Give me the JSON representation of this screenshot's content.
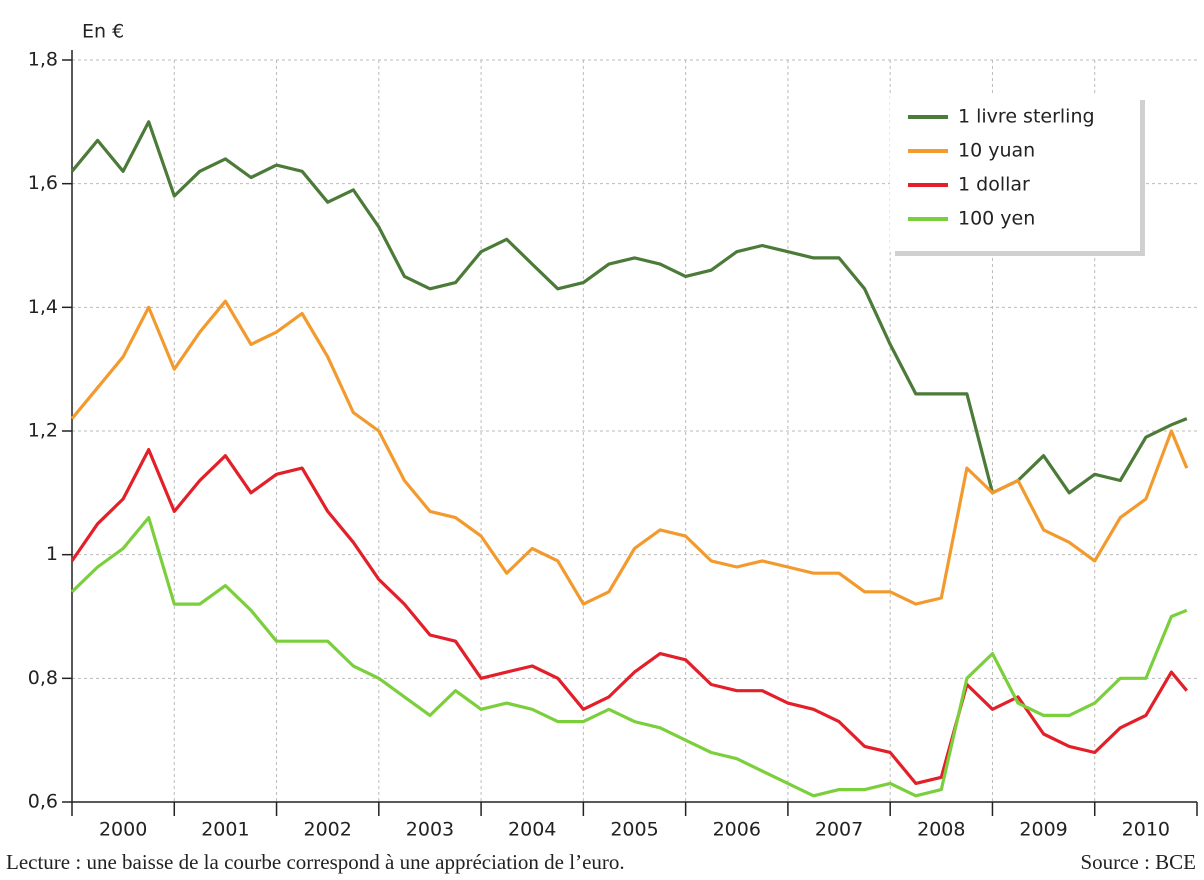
{
  "chart_data": {
    "type": "line",
    "y_label": "En €",
    "note": "Lecture : une baisse de la courbe correspond à une appréciation de l’euro.",
    "source": "Source : BCE",
    "categories": [
      "2000",
      "2001",
      "2002",
      "2003",
      "2004",
      "2005",
      "2006",
      "2007",
      "2008",
      "2009",
      "2010"
    ],
    "xlim": [
      2000,
      2011
    ],
    "ylim": [
      0.6,
      1.8
    ],
    "yticks": [
      {
        "value": 0.6,
        "label": "0,6"
      },
      {
        "value": 0.8,
        "label": "0,8"
      },
      1,
      {
        "value": 1.2,
        "label": "1,2"
      },
      {
        "value": 1.4,
        "label": "1,4"
      },
      {
        "value": 1.6,
        "label": "1,6"
      },
      {
        "value": 1.8,
        "label": "1,8"
      }
    ],
    "grid": true,
    "legend": "upper right",
    "x": [
      2000,
      2000.25,
      2000.5,
      2000.75,
      2001,
      2001.25,
      2001.5,
      2001.75,
      2002,
      2002.25,
      2002.5,
      2002.75,
      2003,
      2003.25,
      2003.5,
      2003.75,
      2004,
      2004.25,
      2004.5,
      2004.75,
      2005,
      2005.25,
      2005.5,
      2005.75,
      2006,
      2006.25,
      2006.5,
      2006.75,
      2007,
      2007.25,
      2007.5,
      2007.75,
      2008,
      2008.25,
      2008.5,
      2008.75,
      2009,
      2009.25,
      2009.5,
      2009.75,
      2010,
      2010.25,
      2010.5,
      2010.75,
      2010.9
    ],
    "series": [
      {
        "name": "1 livre sterling",
        "color": "#4b7a39",
        "values": [
          1.62,
          1.67,
          1.62,
          1.7,
          1.58,
          1.62,
          1.64,
          1.61,
          1.63,
          1.62,
          1.57,
          1.59,
          1.53,
          1.45,
          1.43,
          1.44,
          1.49,
          1.51,
          1.47,
          1.43,
          1.44,
          1.47,
          1.48,
          1.47,
          1.45,
          1.46,
          1.49,
          1.5,
          1.49,
          1.48,
          1.48,
          1.43,
          1.34,
          1.26,
          1.26,
          1.26,
          1.1,
          1.12,
          1.16,
          1.1,
          1.13,
          1.12,
          1.19,
          1.21,
          1.22
        ]
      },
      {
        "name": "10 yuan",
        "color": "#f39a2e",
        "values": [
          1.22,
          1.27,
          1.32,
          1.4,
          1.3,
          1.36,
          1.41,
          1.34,
          1.36,
          1.39,
          1.32,
          1.23,
          1.2,
          1.12,
          1.07,
          1.06,
          1.03,
          0.97,
          1.01,
          0.99,
          0.92,
          0.94,
          1.01,
          1.04,
          1.03,
          0.99,
          0.98,
          0.99,
          0.98,
          0.97,
          0.97,
          0.94,
          0.94,
          0.92,
          0.93,
          1.14,
          1.1,
          1.12,
          1.04,
          1.02,
          0.99,
          1.06,
          1.09,
          1.2,
          1.14
        ]
      },
      {
        "name": "1 dollar",
        "color": "#e3202a",
        "values": [
          0.99,
          1.05,
          1.09,
          1.17,
          1.07,
          1.12,
          1.16,
          1.1,
          1.13,
          1.14,
          1.07,
          1.02,
          0.96,
          0.92,
          0.87,
          0.86,
          0.8,
          0.81,
          0.82,
          0.8,
          0.75,
          0.77,
          0.81,
          0.84,
          0.83,
          0.79,
          0.78,
          0.78,
          0.76,
          0.75,
          0.73,
          0.69,
          0.68,
          0.63,
          0.64,
          0.79,
          0.75,
          0.77,
          0.71,
          0.69,
          0.68,
          0.72,
          0.74,
          0.81,
          0.78
        ]
      },
      {
        "name": "100 yen",
        "color": "#7ccf3c",
        "values": [
          0.94,
          0.98,
          1.01,
          1.06,
          0.92,
          0.92,
          0.95,
          0.91,
          0.86,
          0.86,
          0.86,
          0.82,
          0.8,
          0.77,
          0.74,
          0.78,
          0.75,
          0.76,
          0.75,
          0.73,
          0.73,
          0.75,
          0.73,
          0.72,
          0.7,
          0.68,
          0.67,
          0.65,
          0.63,
          0.61,
          0.62,
          0.62,
          0.63,
          0.61,
          0.62,
          0.8,
          0.84,
          0.76,
          0.74,
          0.74,
          0.76,
          0.8,
          0.8,
          0.9,
          0.91
        ]
      }
    ]
  }
}
